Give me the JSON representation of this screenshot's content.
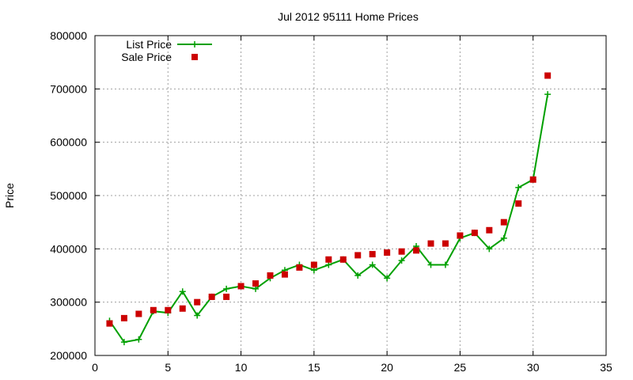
{
  "chart_data": {
    "type": "line",
    "title": "Jul 2012 95111 Home Prices",
    "xlabel": "",
    "ylabel": "Price",
    "xlim": [
      0,
      35
    ],
    "ylim": [
      200000,
      800000
    ],
    "x_ticks": [
      "0",
      "5",
      "10",
      "15",
      "20",
      "25",
      "30",
      "35"
    ],
    "y_ticks": [
      "200000",
      "300000",
      "400000",
      "500000",
      "600000",
      "700000",
      "800000"
    ],
    "grid": true,
    "legend_position": "top-left",
    "series": [
      {
        "name": "List Price",
        "style": "line-with-plus-markers",
        "color": "#00a000",
        "x": [
          1,
          2,
          3,
          4,
          5,
          6,
          7,
          8,
          9,
          10,
          11,
          12,
          13,
          14,
          15,
          16,
          17,
          18,
          19,
          20,
          21,
          22,
          23,
          24,
          25,
          26,
          27,
          28,
          29,
          30,
          31
        ],
        "values": [
          265000,
          225000,
          230000,
          283000,
          280000,
          320000,
          275000,
          310000,
          325000,
          330000,
          325000,
          345000,
          360000,
          370000,
          360000,
          370000,
          380000,
          350000,
          370000,
          345000,
          378000,
          405000,
          370000,
          370000,
          420000,
          430000,
          400000,
          420000,
          515000,
          530000,
          690000
        ]
      },
      {
        "name": "Sale Price",
        "style": "square-markers",
        "color": "#cc0000",
        "x": [
          1,
          2,
          3,
          4,
          5,
          6,
          7,
          8,
          9,
          10,
          11,
          12,
          13,
          14,
          15,
          16,
          17,
          18,
          19,
          20,
          21,
          22,
          23,
          24,
          25,
          26,
          27,
          28,
          29,
          30,
          31
        ],
        "values": [
          260000,
          270000,
          278000,
          285000,
          285000,
          288000,
          300000,
          310000,
          310000,
          330000,
          335000,
          350000,
          352000,
          365000,
          370000,
          380000,
          380000,
          388000,
          390000,
          393000,
          395000,
          397000,
          410000,
          410000,
          425000,
          430000,
          435000,
          450000,
          485000,
          530000,
          725000
        ]
      }
    ]
  }
}
